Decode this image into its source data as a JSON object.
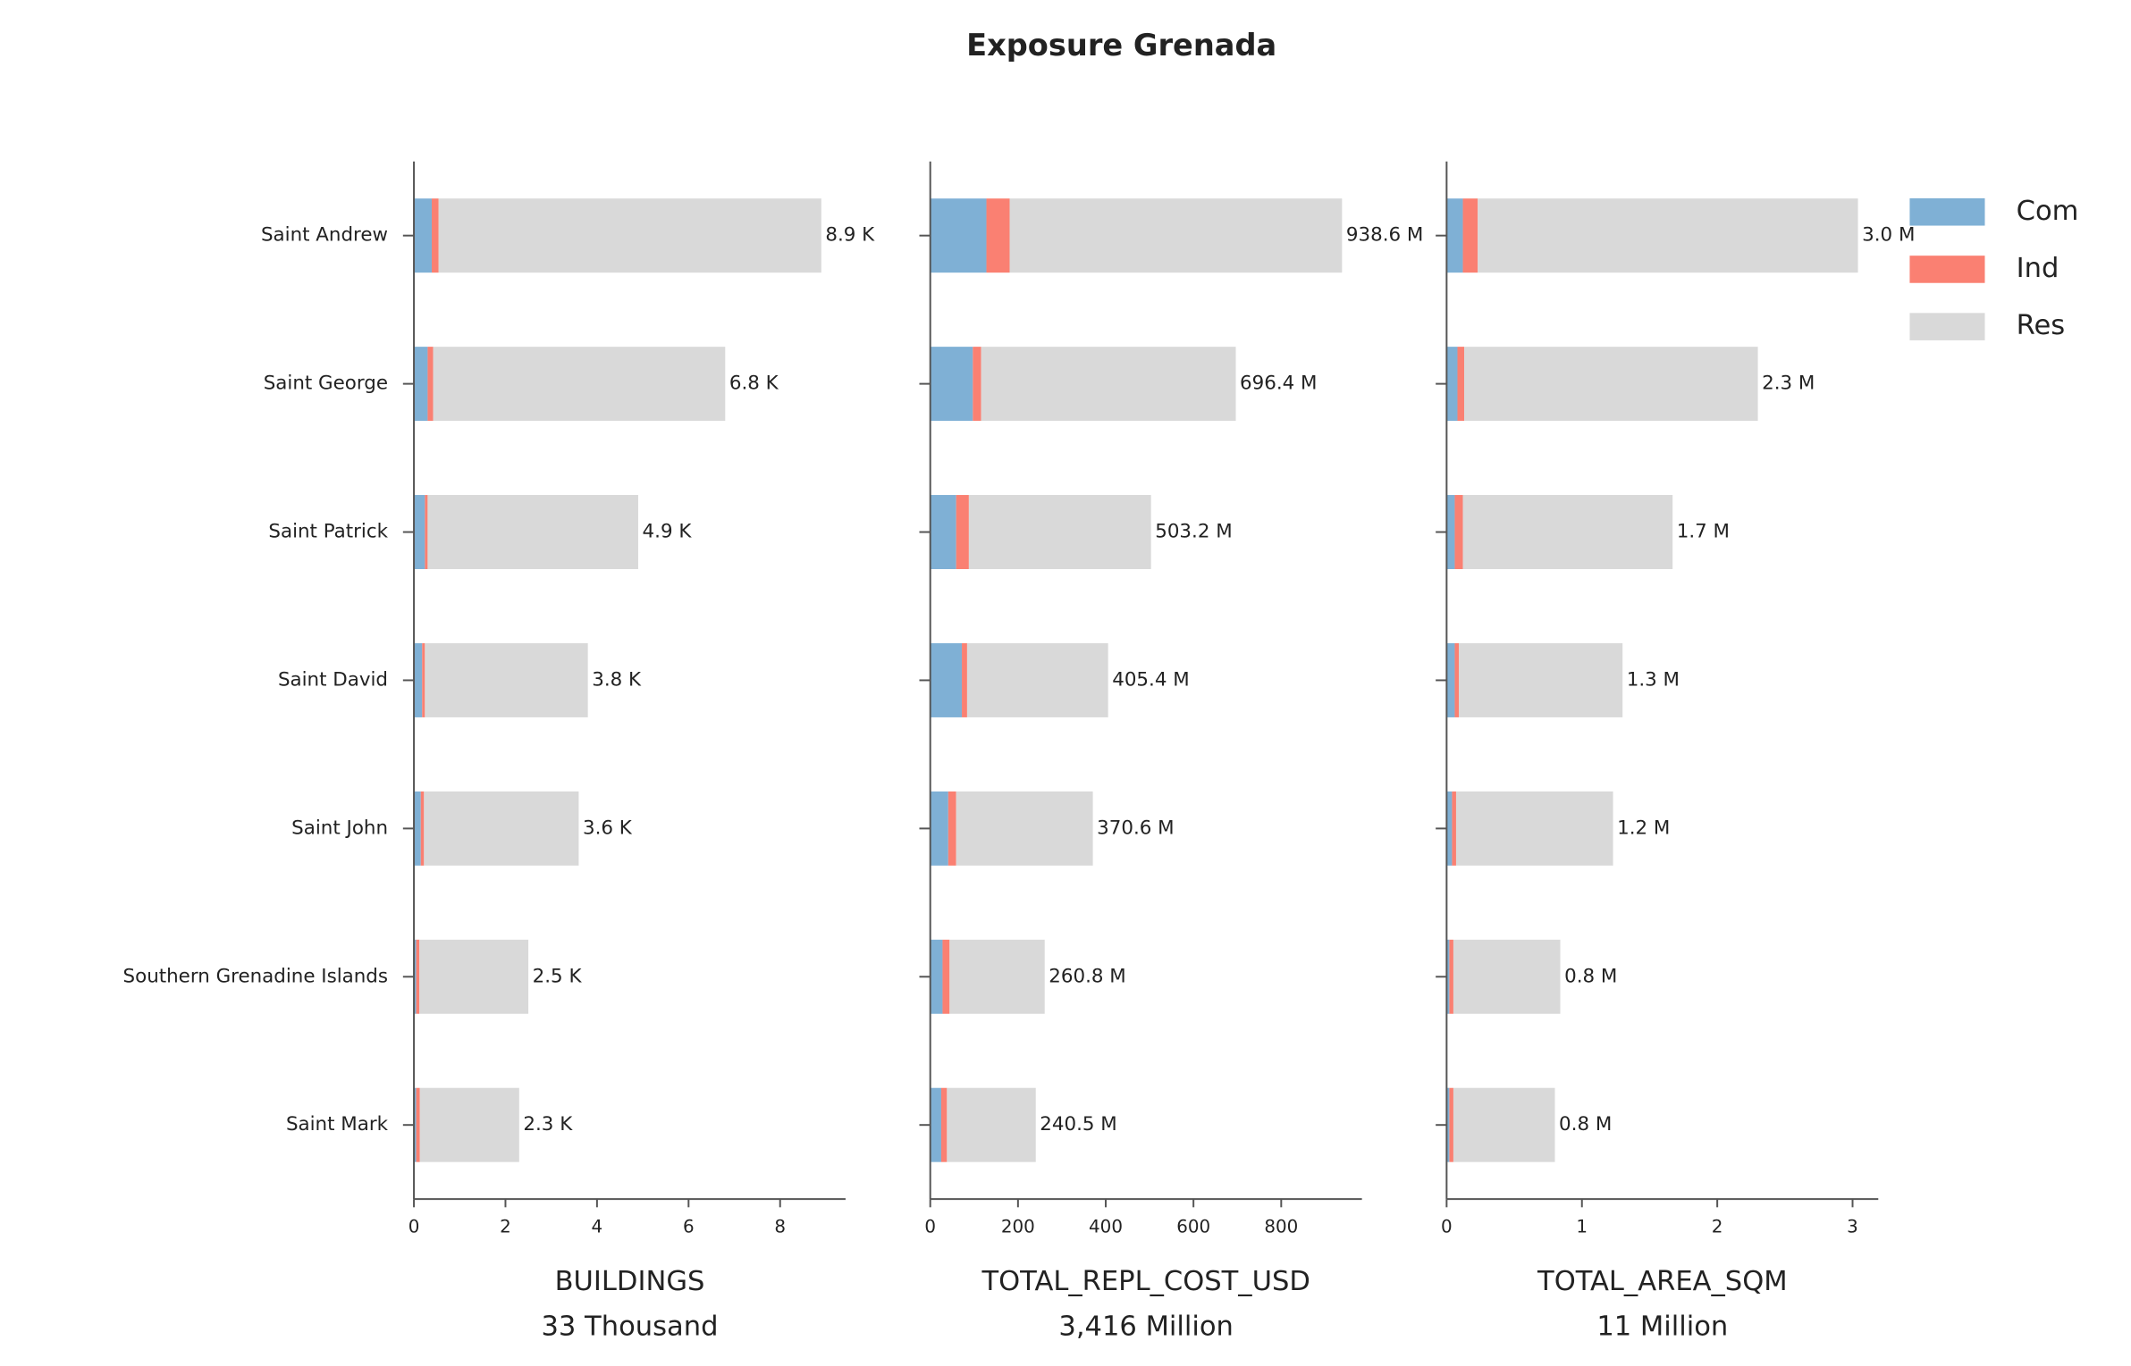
{
  "chart_data": {
    "type": "bar",
    "orientation": "horizontal",
    "stacked": true,
    "title": "Exposure Grenada",
    "categories": [
      "Saint Andrew",
      "Saint George",
      "Saint Patrick",
      "Saint David",
      "Saint John",
      "Southern Grenadine Islands",
      "Saint Mark"
    ],
    "series": [
      {
        "name": "Com",
        "color": "#7fb0d5"
      },
      {
        "name": "Ind",
        "color": "#fa8072"
      },
      {
        "name": "Res",
        "color": "#d9d9d9"
      }
    ],
    "legend": "upper right",
    "panels": [
      {
        "xlabel": "BUILDINGS",
        "summary": "33 Thousand",
        "xlim": [
          0,
          9.43
        ],
        "xticks": [
          0,
          2,
          4,
          6,
          8
        ],
        "values": [
          [
            0.39,
            0.3,
            0.24,
            0.18,
            0.15,
            0.05,
            0.05
          ],
          [
            0.15,
            0.12,
            0.06,
            0.06,
            0.07,
            0.07,
            0.08
          ],
          [
            8.36,
            6.38,
            4.6,
            3.56,
            3.38,
            2.38,
            2.17
          ]
        ],
        "totals": [
          8.9,
          6.8,
          4.9,
          3.8,
          3.6,
          2.5,
          2.3
        ],
        "total_labels": [
          "8.9 K",
          "6.8 K",
          "4.9 K",
          "3.8 K",
          "3.6 K",
          "2.5 K",
          "2.3 K"
        ]
      },
      {
        "xlabel": "TOTAL_REPL_COST_USD",
        "summary": "3,416 Million",
        "xlim": [
          0,
          984
        ],
        "xticks": [
          0,
          200,
          400,
          600,
          800
        ],
        "values": [
          [
            128,
            97,
            59,
            72,
            41,
            28,
            25
          ],
          [
            53,
            19,
            29,
            12,
            18,
            16,
            13
          ],
          [
            757.6,
            580.4,
            415.2,
            321.4,
            311.6,
            216.8,
            202.5
          ]
        ],
        "totals": [
          938.6,
          696.4,
          503.2,
          405.4,
          370.6,
          260.8,
          240.5
        ],
        "total_labels": [
          "938.6 M",
          "696.4 M",
          "503.2 M",
          "405.4 M",
          "370.6 M",
          "260.8 M",
          "240.5 M"
        ]
      },
      {
        "xlabel": "TOTAL_AREA_SQM",
        "summary": "11 Million",
        "xlim": [
          0,
          3.19
        ],
        "xticks": [
          0,
          1,
          2,
          3
        ],
        "values": [
          [
            0.12,
            0.08,
            0.06,
            0.06,
            0.04,
            0.02,
            0.02
          ],
          [
            0.11,
            0.05,
            0.06,
            0.03,
            0.03,
            0.03,
            0.03
          ],
          [
            2.81,
            2.17,
            1.55,
            1.21,
            1.16,
            0.79,
            0.75
          ]
        ],
        "totals": [
          3.04,
          2.3,
          1.67,
          1.3,
          1.23,
          0.84,
          0.8
        ],
        "total_labels": [
          "3.0 M",
          "2.3 M",
          "1.7 M",
          "1.3 M",
          "1.2 M",
          "0.8 M",
          "0.8 M"
        ]
      }
    ]
  }
}
